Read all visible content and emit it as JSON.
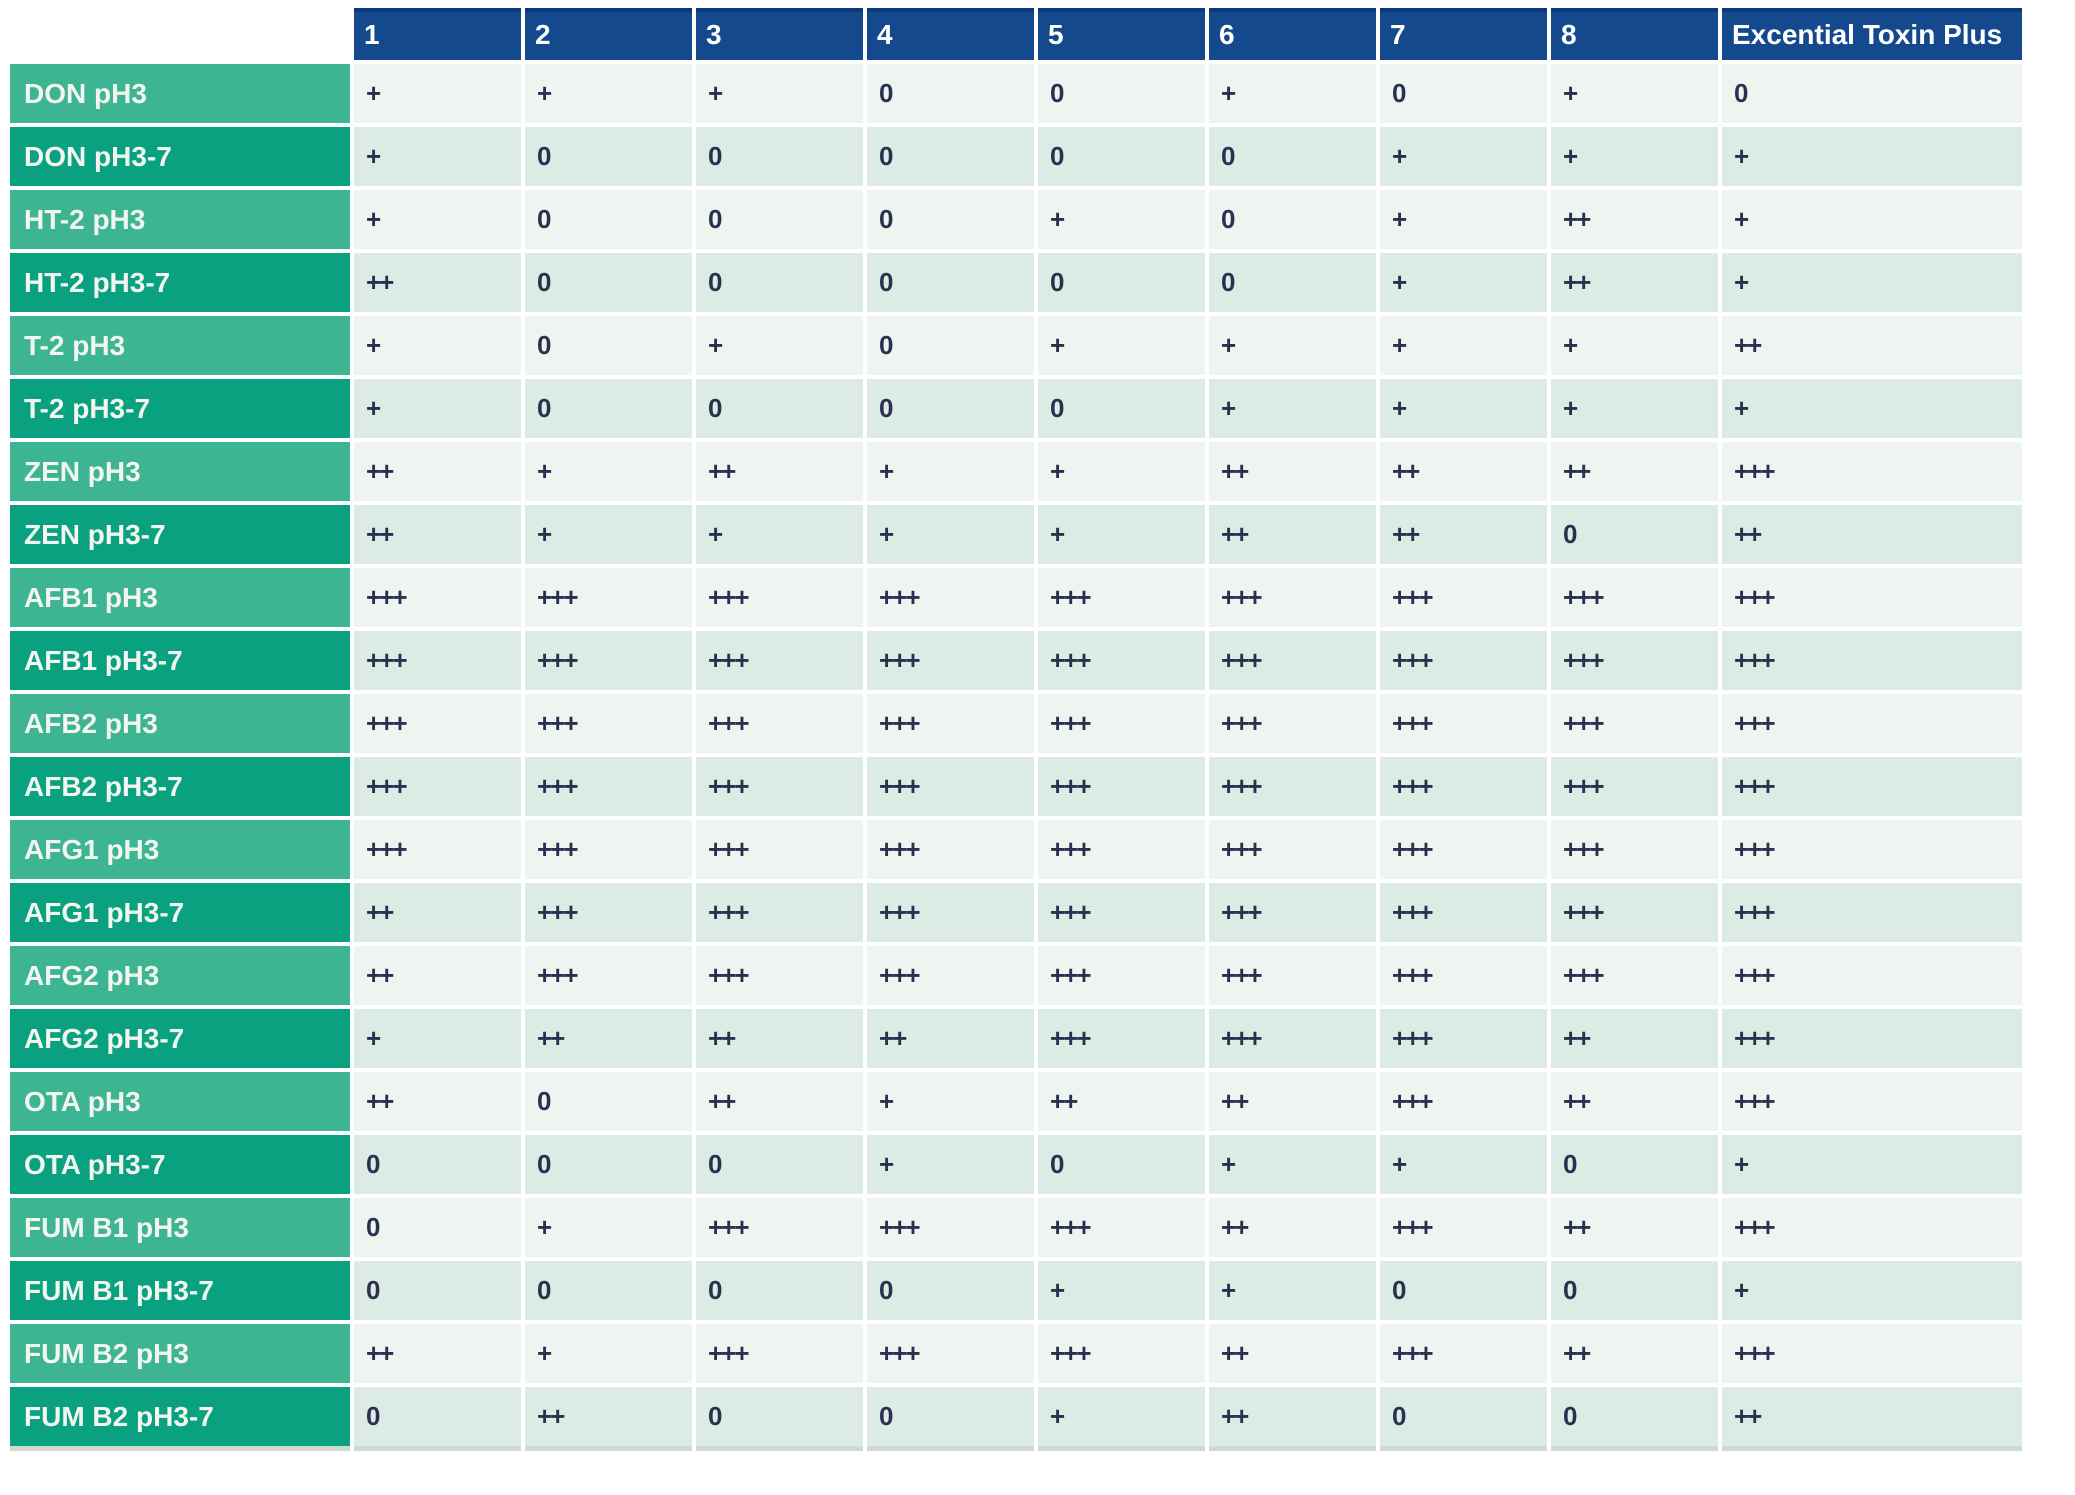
{
  "table": {
    "corner_label": "",
    "columns": [
      "1",
      "2",
      "3",
      "4",
      "5",
      "6",
      "7",
      "8",
      "Excential Toxin Plus"
    ],
    "rows": [
      {
        "label": "DON pH3",
        "tone": "light",
        "values": [
          "+",
          "+",
          "+",
          "0",
          "0",
          "+",
          "0",
          "+",
          "0"
        ]
      },
      {
        "label": "DON pH3-7",
        "tone": "dark",
        "values": [
          "+",
          "0",
          "0",
          "0",
          "0",
          "0",
          "+",
          "+",
          "+"
        ]
      },
      {
        "label": "HT-2 pH3",
        "tone": "light",
        "values": [
          "+",
          "0",
          "0",
          "0",
          "+",
          "0",
          "+",
          "++",
          "+"
        ]
      },
      {
        "label": "HT-2 pH3-7",
        "tone": "dark",
        "values": [
          "++",
          "0",
          "0",
          "0",
          "0",
          "0",
          "+",
          "++",
          "+"
        ]
      },
      {
        "label": "T-2 pH3",
        "tone": "light",
        "values": [
          "+",
          "0",
          "+",
          "0",
          "+",
          "+",
          "+",
          "+",
          "++"
        ]
      },
      {
        "label": "T-2 pH3-7",
        "tone": "dark",
        "values": [
          "+",
          "0",
          "0",
          "0",
          "0",
          "+",
          "+",
          "+",
          "+"
        ]
      },
      {
        "label": "ZEN pH3",
        "tone": "light",
        "values": [
          "++",
          "+",
          "++",
          "+",
          "+",
          "++",
          "++",
          "++",
          "+++"
        ]
      },
      {
        "label": "ZEN pH3-7",
        "tone": "dark",
        "values": [
          "++",
          "+",
          "+",
          "+",
          "+",
          "++",
          "++",
          "0",
          "++"
        ]
      },
      {
        "label": "AFB1 pH3",
        "tone": "light",
        "values": [
          "+++",
          "+++",
          "+++",
          "+++",
          "+++",
          "+++",
          "+++",
          "+++",
          "+++"
        ]
      },
      {
        "label": "AFB1 pH3-7",
        "tone": "dark",
        "values": [
          "+++",
          "+++",
          "+++",
          "+++",
          "+++",
          "+++",
          "+++",
          "+++",
          "+++"
        ]
      },
      {
        "label": "AFB2 pH3",
        "tone": "light",
        "values": [
          "+++",
          "+++",
          "+++",
          "+++",
          "+++",
          "+++",
          "+++",
          "+++",
          "+++"
        ]
      },
      {
        "label": "AFB2 pH3-7",
        "tone": "dark",
        "values": [
          "+++",
          "+++",
          "+++",
          "+++",
          "+++",
          "+++",
          "+++",
          "+++",
          "+++"
        ]
      },
      {
        "label": "AFG1 pH3",
        "tone": "light",
        "values": [
          "+++",
          "+++",
          "+++",
          "+++",
          "+++",
          "+++",
          "+++",
          "+++",
          "+++"
        ]
      },
      {
        "label": "AFG1 pH3-7",
        "tone": "dark",
        "values": [
          "++",
          "+++",
          "+++",
          "+++",
          "+++",
          "+++",
          "+++",
          "+++",
          "+++"
        ]
      },
      {
        "label": "AFG2 pH3",
        "tone": "light",
        "values": [
          "++",
          "+++",
          "+++",
          "+++",
          "+++",
          "+++",
          "+++",
          "+++",
          "+++"
        ]
      },
      {
        "label": "AFG2 pH3-7",
        "tone": "dark",
        "values": [
          "+",
          "++",
          "++",
          "++",
          "+++",
          "+++",
          "+++",
          "++",
          "+++"
        ]
      },
      {
        "label": "OTA pH3",
        "tone": "light",
        "values": [
          "++",
          "0",
          "++",
          "+",
          "++",
          "++",
          "+++",
          "++",
          "+++"
        ]
      },
      {
        "label": "OTA pH3-7",
        "tone": "dark",
        "values": [
          "0",
          "0",
          "0",
          "+",
          "0",
          "+",
          "+",
          "0",
          "+"
        ]
      },
      {
        "label": "FUM B1 pH3",
        "tone": "light",
        "values": [
          "0",
          "+",
          "+++",
          "+++",
          "+++",
          "++",
          "+++",
          "++",
          "+++"
        ]
      },
      {
        "label": "FUM B1 pH3-7",
        "tone": "dark",
        "values": [
          "0",
          "0",
          "0",
          "0",
          "+",
          "+",
          "0",
          "0",
          "+"
        ]
      },
      {
        "label": "FUM B2 pH3",
        "tone": "light",
        "values": [
          "++",
          "+",
          "+++",
          "+++",
          "+++",
          "++",
          "+++",
          "++",
          "+++"
        ]
      },
      {
        "label": "FUM B2 pH3-7",
        "tone": "dark",
        "values": [
          "0",
          "++",
          "0",
          "0",
          "+",
          "++",
          "0",
          "0",
          "++"
        ]
      }
    ]
  },
  "colors": {
    "header_bg": "#15498e",
    "header_top_edge": "#0d3a77",
    "header_text": "#ffffff",
    "label_light_bg": "#3db492",
    "label_dark_bg": "#0aa181",
    "label_text": "#f2f6ee",
    "row_light_bg": "#eef4f0",
    "row_dark_bg": "#dcebe3",
    "cell_text": "#2a3150"
  }
}
